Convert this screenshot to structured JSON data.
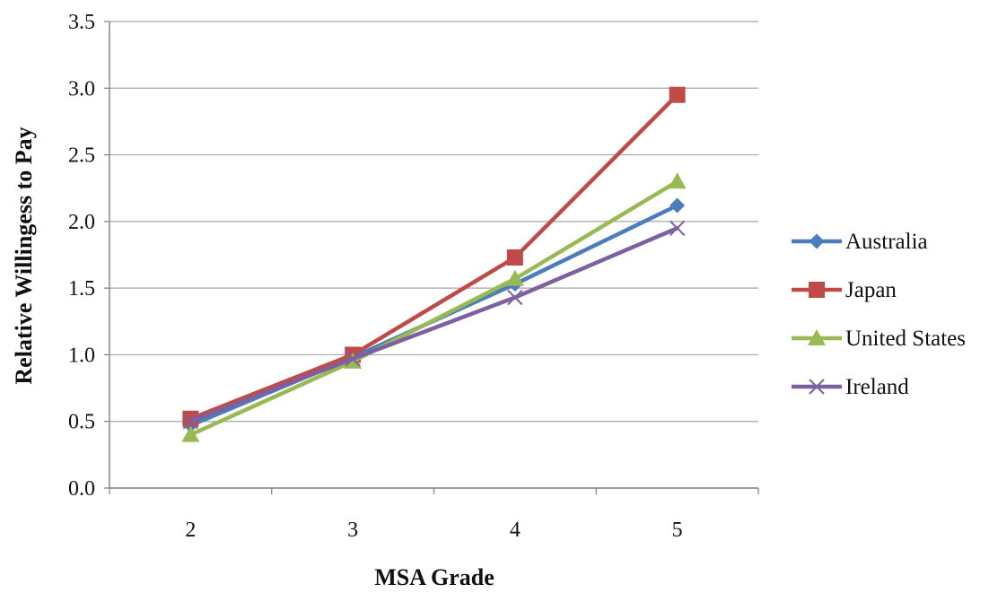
{
  "chart_data": {
    "type": "line",
    "title": "",
    "xlabel": "MSA Grade",
    "ylabel": "Relative Willingess to Pay",
    "categories": [
      "2",
      "3",
      "4",
      "5"
    ],
    "ylim": [
      0,
      3.5
    ],
    "yticks": [
      "0.0",
      "0.5",
      "1.0",
      "1.5",
      "2.0",
      "2.5",
      "3.0",
      "3.5"
    ],
    "grid": true,
    "legend_position": "right",
    "series": [
      {
        "name": "Australia",
        "values": [
          0.47,
          0.98,
          1.53,
          2.12
        ],
        "color": "#4a7ebb",
        "marker": "diamond"
      },
      {
        "name": "Japan",
        "values": [
          0.52,
          1.0,
          1.73,
          2.95
        ],
        "color": "#be4b48",
        "marker": "square"
      },
      {
        "name": "United States",
        "values": [
          0.4,
          0.95,
          1.57,
          2.3
        ],
        "color": "#98b954",
        "marker": "triangle"
      },
      {
        "name": "Ireland",
        "values": [
          0.5,
          0.97,
          1.43,
          1.95
        ],
        "color": "#7d60a0",
        "marker": "x"
      }
    ]
  }
}
